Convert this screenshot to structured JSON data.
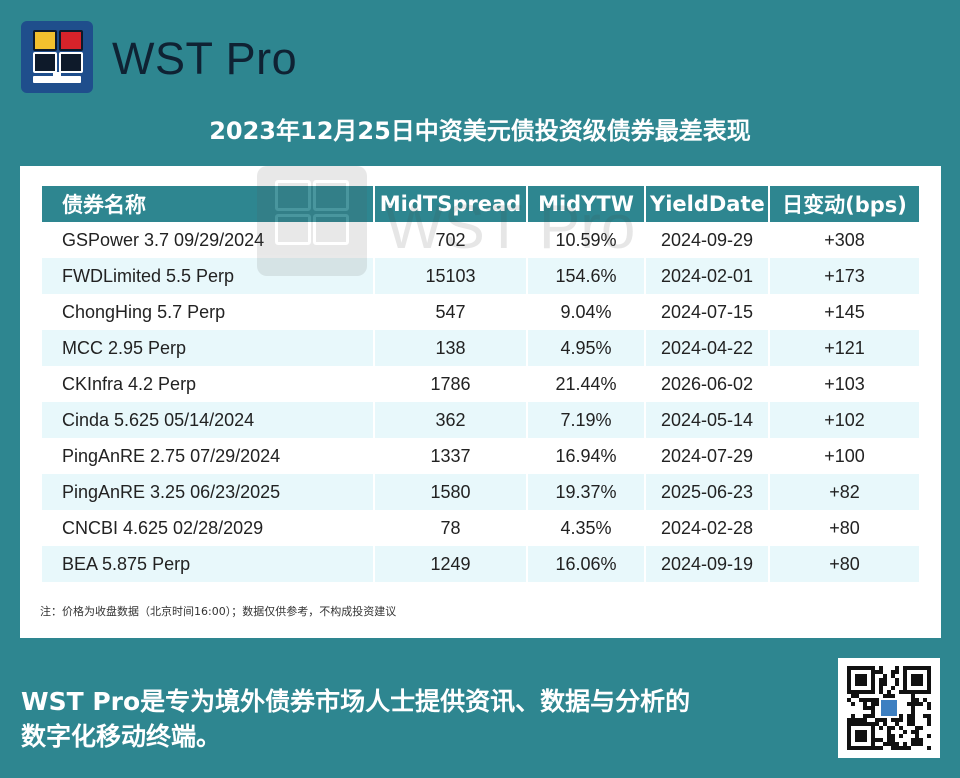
{
  "brand": {
    "name": "WST Pro"
  },
  "title": "2023年12月25日中资美元债投资级债券最差表现",
  "table": {
    "headers": [
      "债券名称",
      "MidTSpread",
      "MidYTW",
      "YieldDate",
      "日变动(bps)"
    ],
    "rows": [
      [
        "GSPower 3.7 09/29/2024",
        "702",
        "10.59%",
        "2024-09-29",
        "+308"
      ],
      [
        "FWDLimited 5.5 Perp",
        "15103",
        "154.6%",
        "2024-02-01",
        "+173"
      ],
      [
        "ChongHing 5.7 Perp",
        "547",
        "9.04%",
        "2024-07-15",
        "+145"
      ],
      [
        "MCC 2.95 Perp",
        "138",
        "4.95%",
        "2024-04-22",
        "+121"
      ],
      [
        "CKInfra 4.2 Perp",
        "1786",
        "21.44%",
        "2026-06-02",
        "+103"
      ],
      [
        "Cinda 5.625 05/14/2024",
        "362",
        "7.19%",
        "2024-05-14",
        "+102"
      ],
      [
        "PingAnRE 2.75 07/29/2024",
        "1337",
        "16.94%",
        "2024-07-29",
        "+100"
      ],
      [
        "PingAnRE 3.25 06/23/2025",
        "1580",
        "19.37%",
        "2025-06-23",
        "+82"
      ],
      [
        "CNCBI 4.625 02/28/2029",
        "78",
        "4.35%",
        "2024-02-28",
        "+80"
      ],
      [
        "BEA 5.875 Perp",
        "1249",
        "16.06%",
        "2024-09-19",
        "+80"
      ]
    ]
  },
  "note": "注：价格为收盘数据（北京时间16:00）；数据仅供参考，不构成投资建议",
  "watermark": "WST Pro",
  "tagline_line1": "WST Pro是专为境外债券市场人士提供资讯、数据与分析的",
  "tagline_line2": "数字化移动终端。",
  "colors": {
    "teal": "#2e8690",
    "row_alt": "#e8f8fb",
    "logo_blue": "#1f4e8c"
  },
  "icons": {
    "logo": "wst-logo-icon",
    "qr": "qr-code-icon"
  }
}
